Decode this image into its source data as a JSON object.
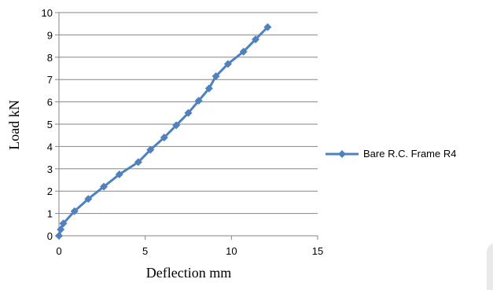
{
  "chart_data": {
    "type": "line",
    "title": "",
    "xlabel": "Deflection mm",
    "ylabel": "Load kN",
    "xlim": [
      0,
      15
    ],
    "ylim": [
      0,
      10
    ],
    "xticks": [
      0,
      5,
      10,
      15
    ],
    "yticks": [
      0,
      1,
      2,
      3,
      4,
      5,
      6,
      7,
      8,
      9,
      10
    ],
    "grid": "horizontal",
    "legend": "right",
    "series": [
      {
        "name": "Bare R.C. Frame R4",
        "color": "#4f81bd",
        "marker": "diamond",
        "x": [
          0,
          0.1,
          0.25,
          0.9,
          1.7,
          2.6,
          3.5,
          4.6,
          5.3,
          6.1,
          6.8,
          7.5,
          8.1,
          8.7,
          9.1,
          9.8,
          10.7,
          11.4,
          12.1
        ],
        "y": [
          0,
          0.28,
          0.55,
          1.1,
          1.65,
          2.2,
          2.75,
          3.3,
          3.85,
          4.4,
          4.95,
          5.5,
          6.05,
          6.6,
          7.15,
          7.7,
          8.25,
          8.8,
          9.35
        ]
      }
    ]
  }
}
